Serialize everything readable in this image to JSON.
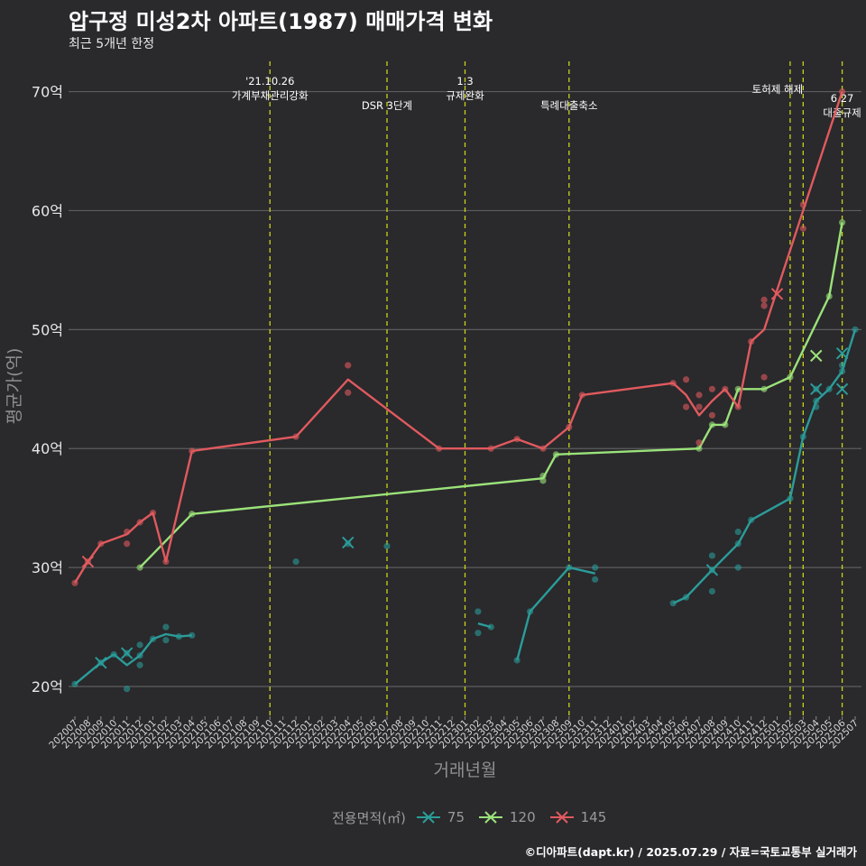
{
  "title": "압구정 미성2차 아파트(1987) 매매가격 변화",
  "subtitle": "최근 5개년 한정",
  "footer": "©디아파트(dapt.kr) / 2025.07.29 / 자료=국토교통부 실거래가",
  "legend": {
    "title": "전용면적(㎡)",
    "items": [
      {
        "label": "75",
        "color": "#2a9d9a"
      },
      {
        "label": "120",
        "color": "#9be27a"
      },
      {
        "label": "145",
        "color": "#e05a5e"
      }
    ]
  },
  "chart_data": {
    "type": "line",
    "xlabel": "거래년월",
    "ylabel": "평균가(억)",
    "ylim": [
      17.5,
      73
    ],
    "yticks": [
      20,
      30,
      40,
      50,
      60,
      70
    ],
    "ytick_labels": [
      "20억",
      "30억",
      "40억",
      "50억",
      "60억",
      "70억"
    ],
    "grid": true,
    "legend_position": "bottom",
    "categories": [
      "202007",
      "202008",
      "202009",
      "202010",
      "202011",
      "202012",
      "202101",
      "202102",
      "202103",
      "202104",
      "202105",
      "202106",
      "202107",
      "202108",
      "202109",
      "202110",
      "202111",
      "202112",
      "202201",
      "202202",
      "202203",
      "202204",
      "202205",
      "202206",
      "202207",
      "202208",
      "202209",
      "202210",
      "202211",
      "202212",
      "202301",
      "202302",
      "202303",
      "202304",
      "202305",
      "202306",
      "202307",
      "202308",
      "202309",
      "202310",
      "202311",
      "202312",
      "202401",
      "202402",
      "202403",
      "202404",
      "202405",
      "202406",
      "202407",
      "202408",
      "202409",
      "202410",
      "202411",
      "202412",
      "202501",
      "202502",
      "202503",
      "202504",
      "202505",
      "202506",
      "202507"
    ],
    "events": [
      {
        "month": "202110",
        "label": "'21.10.26\n가계부채관리강화"
      },
      {
        "month": "202207",
        "label": "DSR 3단계"
      },
      {
        "month": "202301",
        "label": "1.3\n규제완화"
      },
      {
        "month": "202309",
        "label": "특례대출축소"
      },
      {
        "month": "202502",
        "label": "토허제 해제"
      },
      {
        "month": "202503",
        "label": ""
      },
      {
        "month": "202506",
        "label": "6.27\n대출규제"
      }
    ],
    "series": [
      {
        "name": "75",
        "color": "#2a9d9a",
        "line": [
          [
            [
              "202007",
              20.2
            ],
            [
              "202009",
              22
            ],
            [
              "202010",
              22.7
            ],
            [
              "202011",
              21.8
            ],
            [
              "202012",
              22.6
            ],
            [
              "202101",
              24
            ],
            [
              "202102",
              24.4
            ],
            [
              "202103",
              24.2
            ],
            [
              "202104",
              24.3
            ]
          ],
          [
            [
              "202302",
              25.3
            ],
            [
              "202303",
              25
            ]
          ],
          [
            [
              "202305",
              22.2
            ],
            [
              "202306",
              26.3
            ],
            [
              "202309",
              30
            ],
            [
              "202311",
              29.5
            ]
          ],
          [
            [
              "202405",
              27
            ],
            [
              "202406",
              27.5
            ],
            [
              "202408",
              29.8
            ],
            [
              "202410",
              32
            ],
            [
              "202411",
              34
            ],
            [
              "202502",
              35.8
            ],
            [
              "202503",
              41
            ],
            [
              "202504",
              44
            ],
            [
              "202505",
              45
            ],
            [
              "202506",
              46.5
            ],
            [
              "202507",
              50
            ]
          ]
        ],
        "points": [
          [
            "202007",
            20.2
          ],
          [
            "202009",
            22
          ],
          [
            "202010",
            22.7
          ],
          [
            "202011",
            22.8
          ],
          [
            "202011",
            19.8
          ],
          [
            "202012",
            22.6
          ],
          [
            "202012",
            21.8
          ],
          [
            "202012",
            23.5
          ],
          [
            "202101",
            24
          ],
          [
            "202102",
            25
          ],
          [
            "202102",
            23.9
          ],
          [
            "202103",
            24.2
          ],
          [
            "202104",
            24.3
          ],
          [
            "202112",
            30.5
          ],
          [
            "202204",
            32
          ],
          [
            "202207",
            31.8
          ],
          [
            "202302",
            26.3
          ],
          [
            "202302",
            24.5
          ],
          [
            "202303",
            25
          ],
          [
            "202305",
            22.2
          ],
          [
            "202306",
            26.3
          ],
          [
            "202309",
            30
          ],
          [
            "202311",
            30
          ],
          [
            "202311",
            29
          ],
          [
            "202405",
            27
          ],
          [
            "202406",
            27.5
          ],
          [
            "202408",
            29.8
          ],
          [
            "202408",
            31
          ],
          [
            "202408",
            28
          ],
          [
            "202410",
            32
          ],
          [
            "202410",
            33
          ],
          [
            "202410",
            30
          ],
          [
            "202411",
            34
          ],
          [
            "202502",
            35.8
          ],
          [
            "202503",
            41
          ],
          [
            "202504",
            44
          ],
          [
            "202504",
            43.5
          ],
          [
            "202504",
            45
          ],
          [
            "202505",
            45
          ],
          [
            "202506",
            46.5
          ],
          [
            "202506",
            47
          ],
          [
            "202507",
            50
          ]
        ],
        "cancelled": [
          [
            "202009",
            22
          ],
          [
            "202011",
            22.8
          ],
          [
            "202204",
            32.1
          ],
          [
            "202408",
            29.8
          ],
          [
            "202504",
            45
          ],
          [
            "202506",
            45
          ],
          [
            "202506",
            48
          ]
        ]
      },
      {
        "name": "120",
        "color": "#9be27a",
        "line": [
          [
            [
              "202012",
              30
            ],
            [
              "202104",
              34.5
            ],
            [
              "202307",
              37.5
            ],
            [
              "202308",
              39.5
            ],
            [
              "202407",
              40
            ],
            [
              "202408",
              42
            ],
            [
              "202409",
              42
            ],
            [
              "202410",
              45
            ],
            [
              "202412",
              45
            ],
            [
              "202502",
              46
            ],
            [
              "202505",
              52.8
            ],
            [
              "202506",
              59
            ]
          ]
        ],
        "points": [
          [
            "202012",
            30
          ],
          [
            "202104",
            34.5
          ],
          [
            "202307",
            37.7
          ],
          [
            "202307",
            37.3
          ],
          [
            "202308",
            39.5
          ],
          [
            "202407",
            40
          ],
          [
            "202408",
            42
          ],
          [
            "202409",
            42
          ],
          [
            "202410",
            45
          ],
          [
            "202412",
            45
          ],
          [
            "202502",
            46
          ],
          [
            "202505",
            52.8
          ],
          [
            "202506",
            59
          ]
        ],
        "cancelled": [
          [
            "202504",
            47.8
          ]
        ]
      },
      {
        "name": "145",
        "color": "#e05a5e",
        "line": [
          [
            [
              "202007",
              28.7
            ],
            [
              "202008",
              30.5
            ],
            [
              "202009",
              32
            ],
            [
              "202011",
              32.8
            ],
            [
              "202012",
              33.8
            ],
            [
              "202101",
              34.6
            ],
            [
              "202102",
              30.5
            ],
            [
              "202104",
              39.8
            ],
            [
              "202112",
              41
            ],
            [
              "202204",
              45.8
            ],
            [
              "202211",
              40
            ],
            [
              "202303",
              40
            ],
            [
              "202305",
              40.8
            ],
            [
              "202307",
              40
            ],
            [
              "202309",
              41.8
            ],
            [
              "202310",
              44.5
            ],
            [
              "202405",
              45.5
            ],
            [
              "202406",
              44.5
            ],
            [
              "202407",
              42.8
            ],
            [
              "202408",
              44
            ],
            [
              "202409",
              45
            ],
            [
              "202410",
              43.5
            ],
            [
              "202411",
              49
            ],
            [
              "202412",
              50
            ],
            [
              "202503",
              60
            ],
            [
              "202506",
              70
            ]
          ]
        ],
        "points": [
          [
            "202007",
            28.7
          ],
          [
            "202008",
            30.5
          ],
          [
            "202009",
            32
          ],
          [
            "202011",
            32
          ],
          [
            "202011",
            33
          ],
          [
            "202012",
            33.8
          ],
          [
            "202101",
            34.6
          ],
          [
            "202102",
            30.5
          ],
          [
            "202104",
            39.8
          ],
          [
            "202112",
            41
          ],
          [
            "202204",
            47
          ],
          [
            "202204",
            44.7
          ],
          [
            "202211",
            40
          ],
          [
            "202303",
            40
          ],
          [
            "202305",
            40.8
          ],
          [
            "202307",
            40
          ],
          [
            "202309",
            41.8
          ],
          [
            "202310",
            44.5
          ],
          [
            "202405",
            45.5
          ],
          [
            "202406",
            45.8
          ],
          [
            "202406",
            43.5
          ],
          [
            "202407",
            44.5
          ],
          [
            "202407",
            43.5
          ],
          [
            "202407",
            40.5
          ],
          [
            "202408",
            45
          ],
          [
            "202408",
            42.8
          ],
          [
            "202409",
            45
          ],
          [
            "202410",
            43.5
          ],
          [
            "202411",
            49
          ],
          [
            "202412",
            52.5
          ],
          [
            "202412",
            52
          ],
          [
            "202412",
            46
          ],
          [
            "202503",
            58.5
          ],
          [
            "202503",
            60.5
          ],
          [
            "202506",
            70
          ]
        ],
        "cancelled": [
          [
            "202008",
            30.5
          ],
          [
            "202501",
            53
          ]
        ]
      }
    ]
  }
}
